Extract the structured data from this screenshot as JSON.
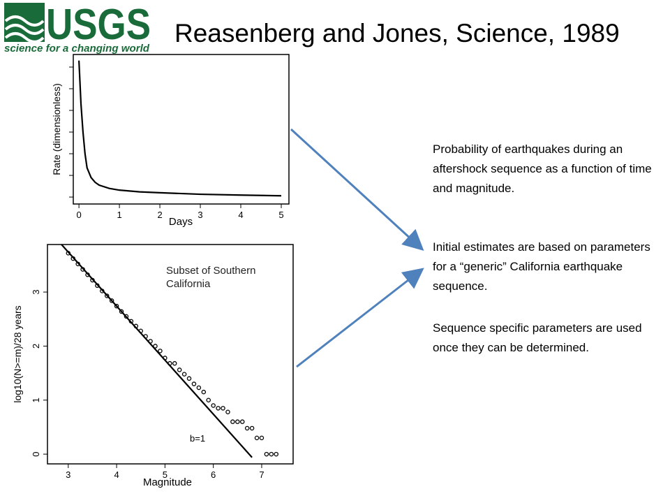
{
  "logo": {
    "name": "USGS",
    "tagline": "science for a changing world"
  },
  "header": {
    "title": "Reasenberg and Jones, Science, 1989"
  },
  "body": {
    "paragraphs": [
      "Probability of earthquakes during an aftershock sequence as a function of time and magnitude.",
      "Initial estimates are based on parameters for a “generic” California earthquake sequence.",
      "Sequence specific parameters are used once they can be determined."
    ]
  },
  "chart_data": [
    {
      "type": "line",
      "xlabel": "Days",
      "ylabel": "Rate (dimensionless)",
      "x": [
        0,
        0.05,
        0.1,
        0.15,
        0.2,
        0.3,
        0.4,
        0.5,
        0.75,
        1,
        1.5,
        2,
        3,
        4,
        5
      ],
      "values": [
        6.3,
        4.3,
        3.0,
        2.0,
        1.35,
        0.9,
        0.68,
        0.55,
        0.4,
        0.32,
        0.24,
        0.2,
        0.13,
        0.09,
        0.06
      ],
      "color": "#000000",
      "xlim": [
        -0.14,
        5.19
      ],
      "xticks": [
        0,
        1,
        2,
        3,
        4,
        5
      ],
      "ylim": [
        -0.32,
        6.58
      ],
      "yticks": [
        0,
        1,
        2,
        3,
        4,
        5,
        6
      ],
      "ytick_labels": false
    },
    {
      "type": "scatter",
      "xlabel": "Magnitude",
      "ylabel": "log10(N>=m)/28 years",
      "annotation": "Subset of Southern California",
      "xlim": [
        2.57,
        7.65
      ],
      "xticks": [
        3,
        4,
        5,
        6,
        7
      ],
      "ylim": [
        -0.18,
        3.88
      ],
      "yticks": [
        0,
        1,
        2,
        3
      ],
      "series": [
        {
          "type": "scatter",
          "color": "#000000",
          "x": [
            3.0,
            3.1,
            3.2,
            3.3,
            3.4,
            3.5,
            3.6,
            3.7,
            3.8,
            3.9,
            4.0,
            4.1,
            4.2,
            4.3,
            4.4,
            4.5,
            4.6,
            4.7,
            4.8,
            4.9,
            5.0,
            5.1,
            5.2,
            5.3,
            5.4,
            5.5,
            5.6,
            5.7,
            5.8,
            5.9,
            6.0,
            6.1,
            6.2,
            6.3,
            6.4,
            6.5,
            6.6,
            6.7,
            6.8,
            6.9,
            7.0,
            7.1,
            7.2,
            7.3
          ],
          "values": [
            3.72,
            3.62,
            3.52,
            3.42,
            3.32,
            3.22,
            3.12,
            3.02,
            2.93,
            2.84,
            2.74,
            2.64,
            2.55,
            2.46,
            2.37,
            2.28,
            2.18,
            2.09,
            2.0,
            1.91,
            1.78,
            1.68,
            1.68,
            1.56,
            1.48,
            1.4,
            1.3,
            1.23,
            1.15,
            1.0,
            0.9,
            0.85,
            0.85,
            0.78,
            0.6,
            0.6,
            0.6,
            0.48,
            0.48,
            0.3,
            0.3,
            0.0,
            0.0,
            0.0
          ]
        },
        {
          "type": "line",
          "name": "b=1",
          "color": "#000000",
          "x": [
            2.86,
            6.8
          ],
          "values": [
            3.88,
            -0.06
          ]
        }
      ]
    }
  ]
}
